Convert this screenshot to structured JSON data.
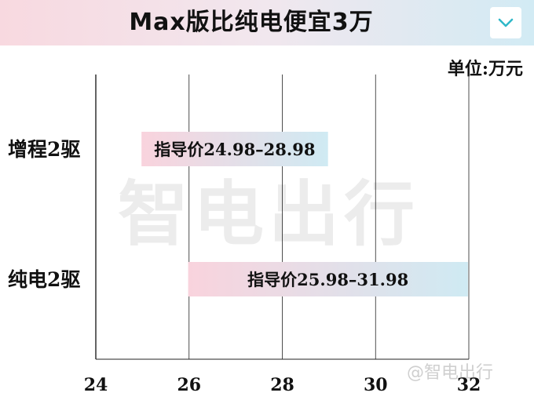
{
  "header": {
    "title": "Max版比纯电便宜3万",
    "expand_icon": "chevron-down-icon"
  },
  "watermark": {
    "text": "智电出行",
    "small_text": "@智电出行"
  },
  "chart_data": {
    "type": "bar",
    "orientation": "horizontal-range",
    "unit_label": "单位:万元",
    "categories": [
      "增程2驱",
      "纯电2驱"
    ],
    "ranges": [
      {
        "category": "增程2驱",
        "low": 24.98,
        "high": 28.98,
        "label": "指导价24.98–28.98"
      },
      {
        "category": "纯电2驱",
        "low": 25.98,
        "high": 31.98,
        "label": "指导价25.98–31.98"
      }
    ],
    "xlim": [
      24,
      32
    ],
    "xticks": [
      "24",
      "26",
      "28",
      "30",
      "32"
    ],
    "grid": true,
    "colors": {
      "bar_start": "#f9d3dd",
      "bar_end": "#cfeaf3",
      "grid": "#222222"
    }
  }
}
